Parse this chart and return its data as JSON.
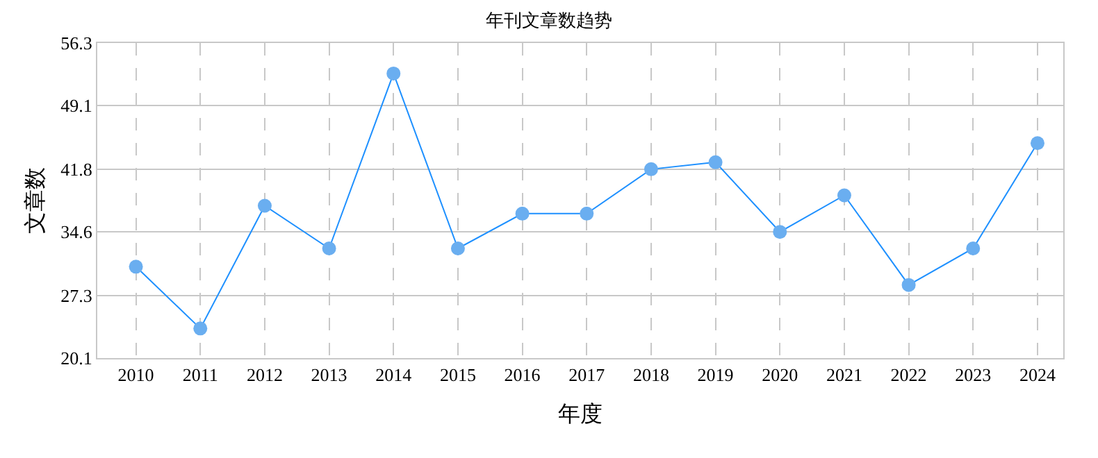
{
  "chart_data": {
    "type": "line",
    "title": "年刊文章数趋势",
    "xlabel": "年度",
    "ylabel": "文章数",
    "categories": [
      "2010",
      "2011",
      "2012",
      "2013",
      "2014",
      "2015",
      "2016",
      "2017",
      "2018",
      "2019",
      "2020",
      "2021",
      "2022",
      "2023",
      "2024"
    ],
    "series": [
      {
        "color": "#1e90ff",
        "values": [
          30.6,
          23.5,
          37.6,
          32.7,
          52.8,
          32.7,
          36.7,
          36.7,
          41.8,
          42.6,
          34.6,
          38.8,
          28.5,
          32.7,
          44.8
        ]
      }
    ],
    "ylim": [
      20.1,
      56.3
    ],
    "yticks": [
      20.1,
      27.3,
      34.6,
      41.8,
      49.1,
      56.3
    ],
    "grid": true,
    "legend": false,
    "marker": "circle",
    "line_style": "solid"
  }
}
